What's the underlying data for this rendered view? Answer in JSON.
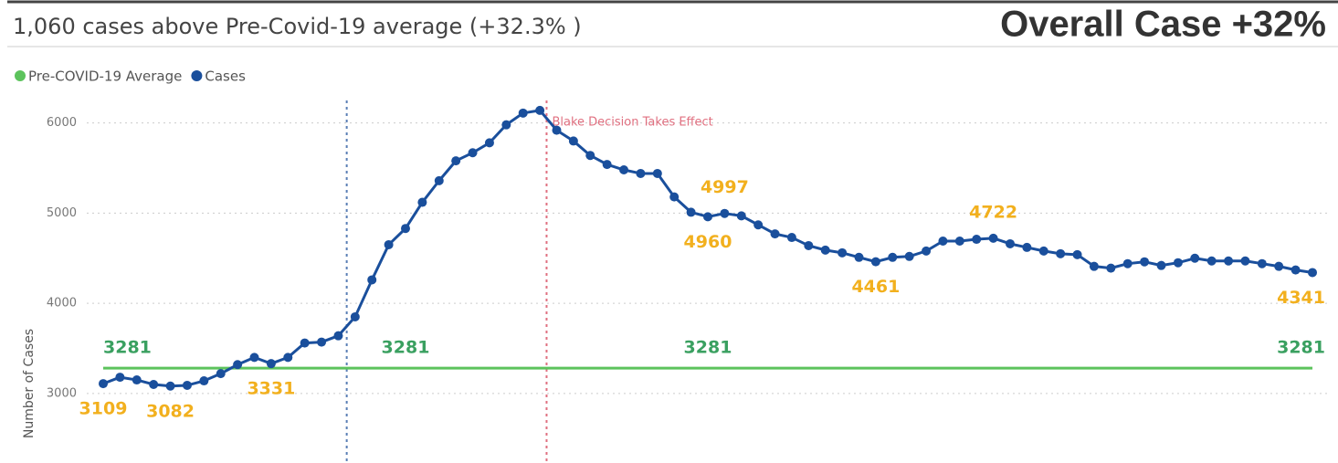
{
  "chart_data": {
    "type": "line",
    "title": "1,060 cases above Pre-Covid-19 average (+32.3% )",
    "headline": "Overall Case +32%",
    "ylabel": "Number of Cases",
    "ylim": [
      2330,
      6250
    ],
    "yticks": [
      3000,
      4000,
      5000,
      6000
    ],
    "grid": true,
    "legend": "top-left",
    "categories": [
      null,
      null,
      null,
      null,
      null,
      null,
      null,
      null,
      null,
      null,
      null,
      null,
      null,
      null,
      null,
      null,
      null,
      null,
      null,
      null,
      null,
      null,
      null,
      null,
      null,
      null,
      null,
      null,
      null,
      null,
      null,
      null,
      null,
      null,
      null,
      null,
      null,
      null,
      null,
      null,
      null,
      null,
      null,
      null,
      null,
      null,
      null,
      null,
      null,
      null,
      null,
      null,
      null,
      null,
      null,
      null,
      null,
      null,
      null,
      null,
      null,
      null,
      null,
      null,
      null,
      null,
      null,
      null,
      null,
      null,
      null,
      null,
      null
    ],
    "series": [
      {
        "name": "Pre-COVID-19 Average",
        "color": "#5cc35c",
        "label_color": "#3aa060",
        "values": [
          3281,
          3281,
          3281,
          3281,
          3281,
          3281,
          3281,
          3281,
          3281,
          3281,
          3281,
          3281,
          3281,
          3281,
          3281,
          3281,
          3281,
          3281,
          3281,
          3281,
          3281,
          3281,
          3281,
          3281,
          3281,
          3281,
          3281,
          3281,
          3281,
          3281,
          3281,
          3281,
          3281,
          3281,
          3281,
          3281,
          3281,
          3281,
          3281,
          3281,
          3281,
          3281,
          3281,
          3281,
          3281,
          3281,
          3281,
          3281,
          3281,
          3281,
          3281,
          3281,
          3281,
          3281,
          3281,
          3281,
          3281,
          3281,
          3281,
          3281,
          3281,
          3281,
          3281,
          3281,
          3281,
          3281,
          3281,
          3281,
          3281,
          3281,
          3281,
          3281,
          3281
        ],
        "value_labels": [
          "3281",
          null,
          null,
          null,
          null,
          null,
          null,
          null,
          null,
          null,
          null,
          null,
          null,
          null,
          null,
          null,
          null,
          null,
          "3281",
          null,
          null,
          null,
          null,
          null,
          null,
          null,
          null,
          null,
          null,
          null,
          null,
          null,
          null,
          null,
          null,
          null,
          "3281",
          null,
          null,
          null,
          null,
          null,
          null,
          null,
          null,
          null,
          null,
          null,
          null,
          null,
          null,
          null,
          null,
          null,
          null,
          null,
          null,
          null,
          null,
          null,
          null,
          null,
          null,
          null,
          null,
          null,
          null,
          null,
          null,
          null,
          null,
          null,
          "3281"
        ]
      },
      {
        "name": "Cases",
        "color": "#1a4f9c",
        "label_color": "#f2b01e",
        "markers": true,
        "values": [
          3109,
          3180,
          3150,
          3100,
          3082,
          3090,
          3140,
          3220,
          3320,
          3400,
          3331,
          3400,
          3560,
          3570,
          3640,
          3850,
          4260,
          4650,
          4830,
          5120,
          5360,
          5580,
          5670,
          5780,
          5980,
          6110,
          6140,
          5920,
          5800,
          5640,
          5540,
          5480,
          5440,
          5440,
          5180,
          5010,
          4960,
          4997,
          4970,
          4870,
          4770,
          4730,
          4640,
          4590,
          4560,
          4510,
          4461,
          4510,
          4520,
          4580,
          4690,
          4690,
          4710,
          4722,
          4660,
          4620,
          4580,
          4550,
          4540,
          4410,
          4390,
          4440,
          4460,
          4420,
          4450,
          4500,
          4470,
          4470,
          4470,
          4440,
          4410,
          4370,
          4341
        ],
        "value_labels": [
          "3109",
          null,
          null,
          null,
          "3082",
          null,
          null,
          null,
          null,
          null,
          "3331",
          null,
          null,
          null,
          null,
          null,
          null,
          null,
          null,
          null,
          null,
          null,
          null,
          null,
          null,
          null,
          null,
          null,
          null,
          null,
          null,
          null,
          null,
          null,
          null,
          null,
          "4960",
          "4997",
          null,
          null,
          null,
          null,
          null,
          null,
          null,
          null,
          "4461",
          null,
          null,
          null,
          null,
          null,
          null,
          "4722",
          null,
          null,
          null,
          null,
          null,
          null,
          null,
          null,
          null,
          null,
          null,
          null,
          null,
          null,
          null,
          null,
          null,
          null,
          "4341"
        ]
      }
    ],
    "reference_lines": [
      {
        "at": 14.5,
        "color": "#5a7fb5"
      },
      {
        "at": 26.4,
        "color": "#e07080",
        "label": "Blake Decision Takes Effect"
      }
    ]
  }
}
